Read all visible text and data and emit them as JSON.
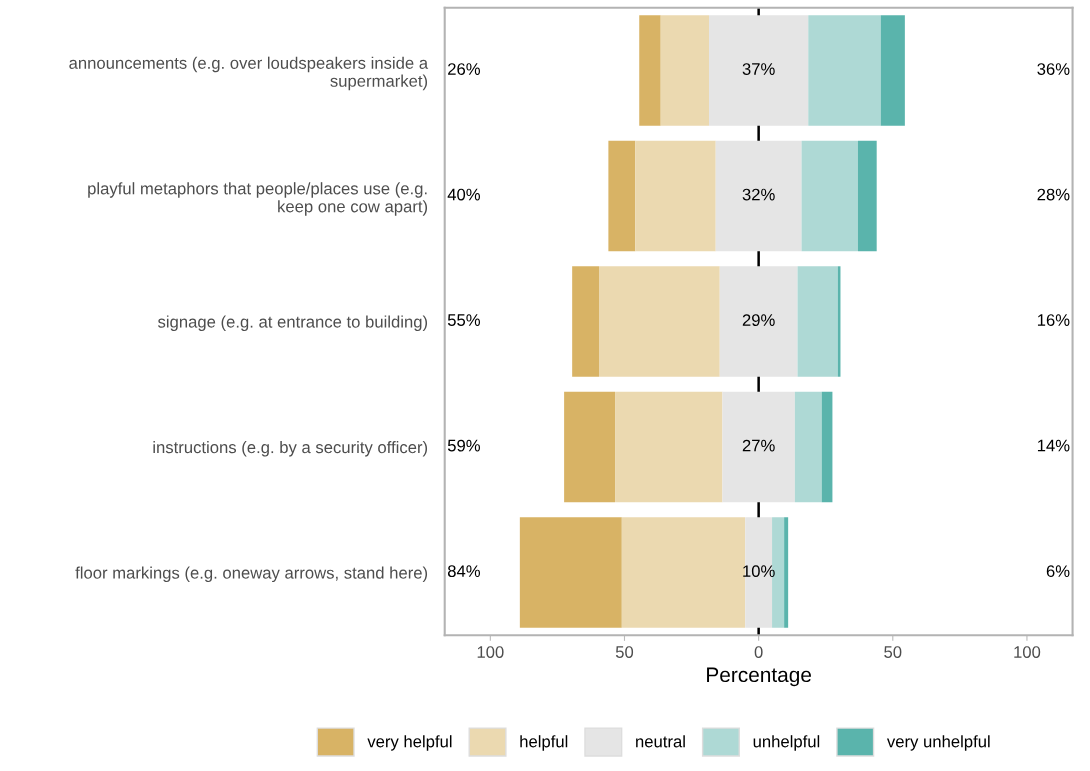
{
  "chart_data": {
    "type": "bar",
    "orientation": "horizontal",
    "xlabel": "Percentage",
    "categories": [
      "announcements (e.g. over loudspeakers inside a\nsupermarket)",
      "playful metaphors that people/places use (e.g.\nkeep one cow apart)",
      "signage (e.g. at entrance to building)",
      "instructions (e.g. by a security officer)",
      "floor markings (e.g. oneway arrows, stand here)"
    ],
    "series": [
      {
        "name": "very helpful",
        "color": "#d8b365",
        "values": [
          8,
          10,
          10,
          19,
          38
        ],
        "base": [
          -44.5,
          -56,
          -69.5,
          -72.5,
          -89
        ]
      },
      {
        "name": "helpful",
        "color": "#ebd9b0",
        "values": [
          18,
          30,
          45,
          40,
          46
        ],
        "base": [
          -36.5,
          -46,
          -59.5,
          -53.5,
          -51
        ]
      },
      {
        "name": "neutral",
        "color": "#e5e5e5",
        "values": [
          37,
          32,
          29,
          27,
          10
        ],
        "base": [
          -18.5,
          -16,
          -14.5,
          -13.5,
          -5
        ]
      },
      {
        "name": "unhelpful",
        "color": "#aed9d5",
        "values": [
          27,
          21,
          15,
          10,
          4.5
        ],
        "base": [
          18.5,
          16,
          14.5,
          13.5,
          5
        ]
      },
      {
        "name": "very unhelpful",
        "color": "#5ab4ac",
        "values": [
          9,
          7,
          1,
          4,
          1.5
        ],
        "base": [
          45.5,
          37,
          29.5,
          23.5,
          9.5
        ]
      }
    ],
    "xlim": [
      -117,
      117
    ],
    "xticks": [
      {
        "value": -100,
        "label": "100"
      },
      {
        "value": -50,
        "label": "50"
      },
      0,
      50,
      100
    ],
    "ref_lines": [
      {
        "axis": "x",
        "value": 0,
        "color": "#000000"
      }
    ],
    "annotations": [
      "26%",
      "37%",
      "36%",
      "40%",
      "32%",
      "28%",
      "55%",
      "29%",
      "16%",
      "59%",
      "27%",
      "14%",
      "84%",
      "10%",
      "6%"
    ],
    "grid": false,
    "legend": "bottom"
  }
}
